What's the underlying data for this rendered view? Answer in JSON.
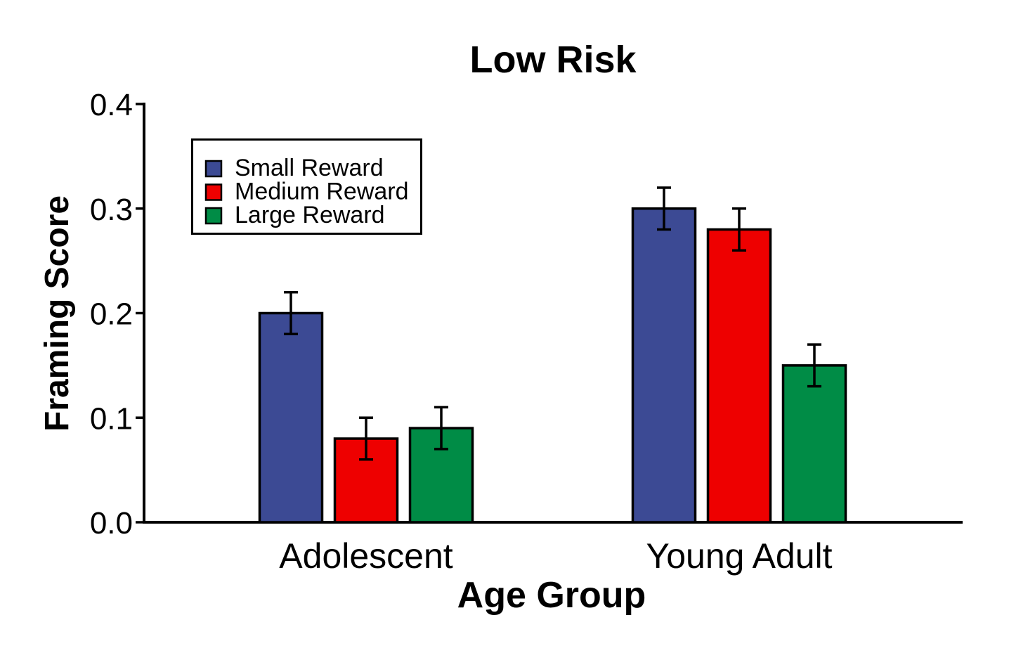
{
  "figure": {
    "background": "#FFFFFF",
    "axis_color": "#000000"
  },
  "chart_data": {
    "type": "bar",
    "title": "Low Risk",
    "xlabel": "Age Group",
    "ylabel": "Framing Score",
    "categories": [
      "Adolescent",
      "Young Adult"
    ],
    "series": [
      {
        "name": "Small Reward",
        "color": "#3C4A94",
        "values": [
          0.2,
          0.3
        ],
        "errors": [
          0.02,
          0.02
        ]
      },
      {
        "name": "Medium Reward",
        "color": "#EE0000",
        "values": [
          0.08,
          0.28
        ],
        "errors": [
          0.02,
          0.02
        ]
      },
      {
        "name": "Large Reward",
        "color": "#008C46",
        "values": [
          0.09,
          0.15
        ],
        "errors": [
          0.02,
          0.02
        ]
      }
    ],
    "ylim": [
      0.0,
      0.4
    ],
    "yticks": [
      0.0,
      0.1,
      0.2,
      0.3,
      0.4
    ],
    "ytick_labels": [
      "0.0",
      "0.1",
      "0.2",
      "0.3",
      "0.4"
    ],
    "grid": false,
    "legend_position": "upper-left",
    "error_bar_style": "capped"
  }
}
